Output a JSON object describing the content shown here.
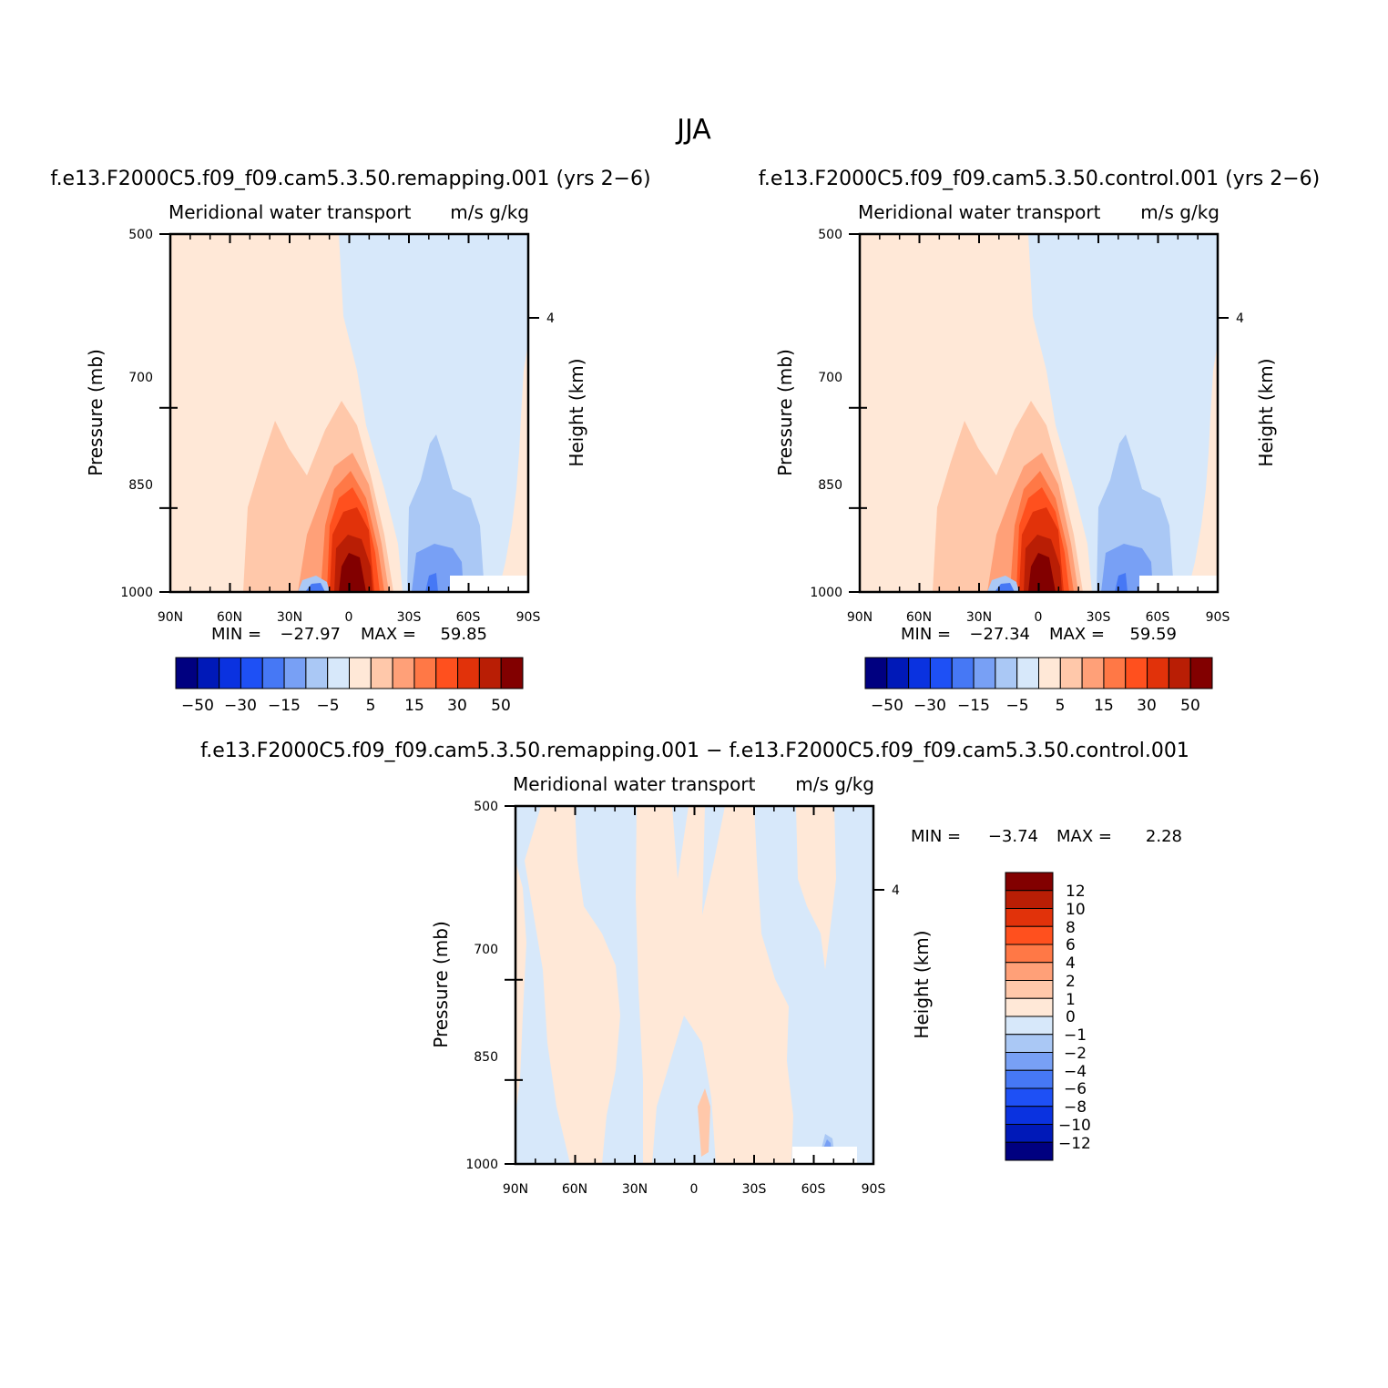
{
  "figure": {
    "title": "JJA"
  },
  "colors": {
    "levels": [
      "#000080",
      "#0019b8",
      "#0a32e0",
      "#1e50f5",
      "#4678f5",
      "#78a0f5",
      "#aac8f5",
      "#d7e8fa",
      "#ffe8d7",
      "#ffc8aa",
      "#ffa078",
      "#ff7846",
      "#ff501e",
      "#e1320a",
      "#b91e05",
      "#820000"
    ],
    "frame": "#000000"
  },
  "chart_data": [
    {
      "type": "heatmap",
      "title": "f.e13.F2000C5.f09_f09.cam5.3.50.remapping.001 (yrs 2−6)",
      "subtitle_left": "Meridional water transport",
      "subtitle_right": "m/s g/kg",
      "ylabel": "Pressure (mb)",
      "ylabel_right": "Height (km)",
      "x_ticks": [
        "90N",
        "60N",
        "30N",
        "0",
        "30S",
        "60S",
        "90S"
      ],
      "y_ticks": [
        "500",
        "700",
        "850",
        "1000"
      ],
      "y_right_ticks": [
        "4"
      ],
      "min_label": "MIN =",
      "min_value": "−27.97",
      "max_label": "MAX =",
      "max_value": "59.85",
      "min": -27.97,
      "max": 59.85,
      "colorbar_labels": [
        "−50",
        "−30",
        "−15",
        "−5",
        "5",
        "15",
        "30",
        "50"
      ],
      "yscale": "log"
    },
    {
      "type": "heatmap",
      "title": "f.e13.F2000C5.f09_f09.cam5.3.50.control.001 (yrs 2−6)",
      "subtitle_left": "Meridional water transport",
      "subtitle_right": "m/s g/kg",
      "ylabel": "Pressure (mb)",
      "ylabel_right": "Height (km)",
      "x_ticks": [
        "90N",
        "60N",
        "30N",
        "0",
        "30S",
        "60S",
        "90S"
      ],
      "y_ticks": [
        "500",
        "700",
        "850",
        "1000"
      ],
      "y_right_ticks": [
        "4"
      ],
      "min_label": "MIN =",
      "min_value": "−27.34",
      "max_label": "MAX =",
      "max_value": "59.59",
      "min": -27.34,
      "max": 59.59,
      "colorbar_labels": [
        "−50",
        "−30",
        "−15",
        "−5",
        "5",
        "15",
        "30",
        "50"
      ],
      "yscale": "log"
    },
    {
      "type": "heatmap",
      "title": "f.e13.F2000C5.f09_f09.cam5.3.50.remapping.001 − f.e13.F2000C5.f09_f09.cam5.3.50.control.001",
      "subtitle_left": "Meridional water transport",
      "subtitle_right": "m/s g/kg",
      "ylabel": "Pressure (mb)",
      "ylabel_right": "Height (km)",
      "x_ticks": [
        "90N",
        "60N",
        "30N",
        "0",
        "30S",
        "60S",
        "90S"
      ],
      "y_ticks": [
        "500",
        "700",
        "850",
        "1000"
      ],
      "y_right_ticks": [
        "4"
      ],
      "min_label": "MIN =",
      "min_value": "−3.74",
      "max_label": "MAX =",
      "max_value": "2.28",
      "min": -3.74,
      "max": 2.28,
      "colorbar_labels": [
        "12",
        "10",
        "8",
        "6",
        "4",
        "2",
        "1",
        "0",
        "−1",
        "−2",
        "−4",
        "−6",
        "−8",
        "−10",
        "−12"
      ],
      "yscale": "log"
    }
  ]
}
